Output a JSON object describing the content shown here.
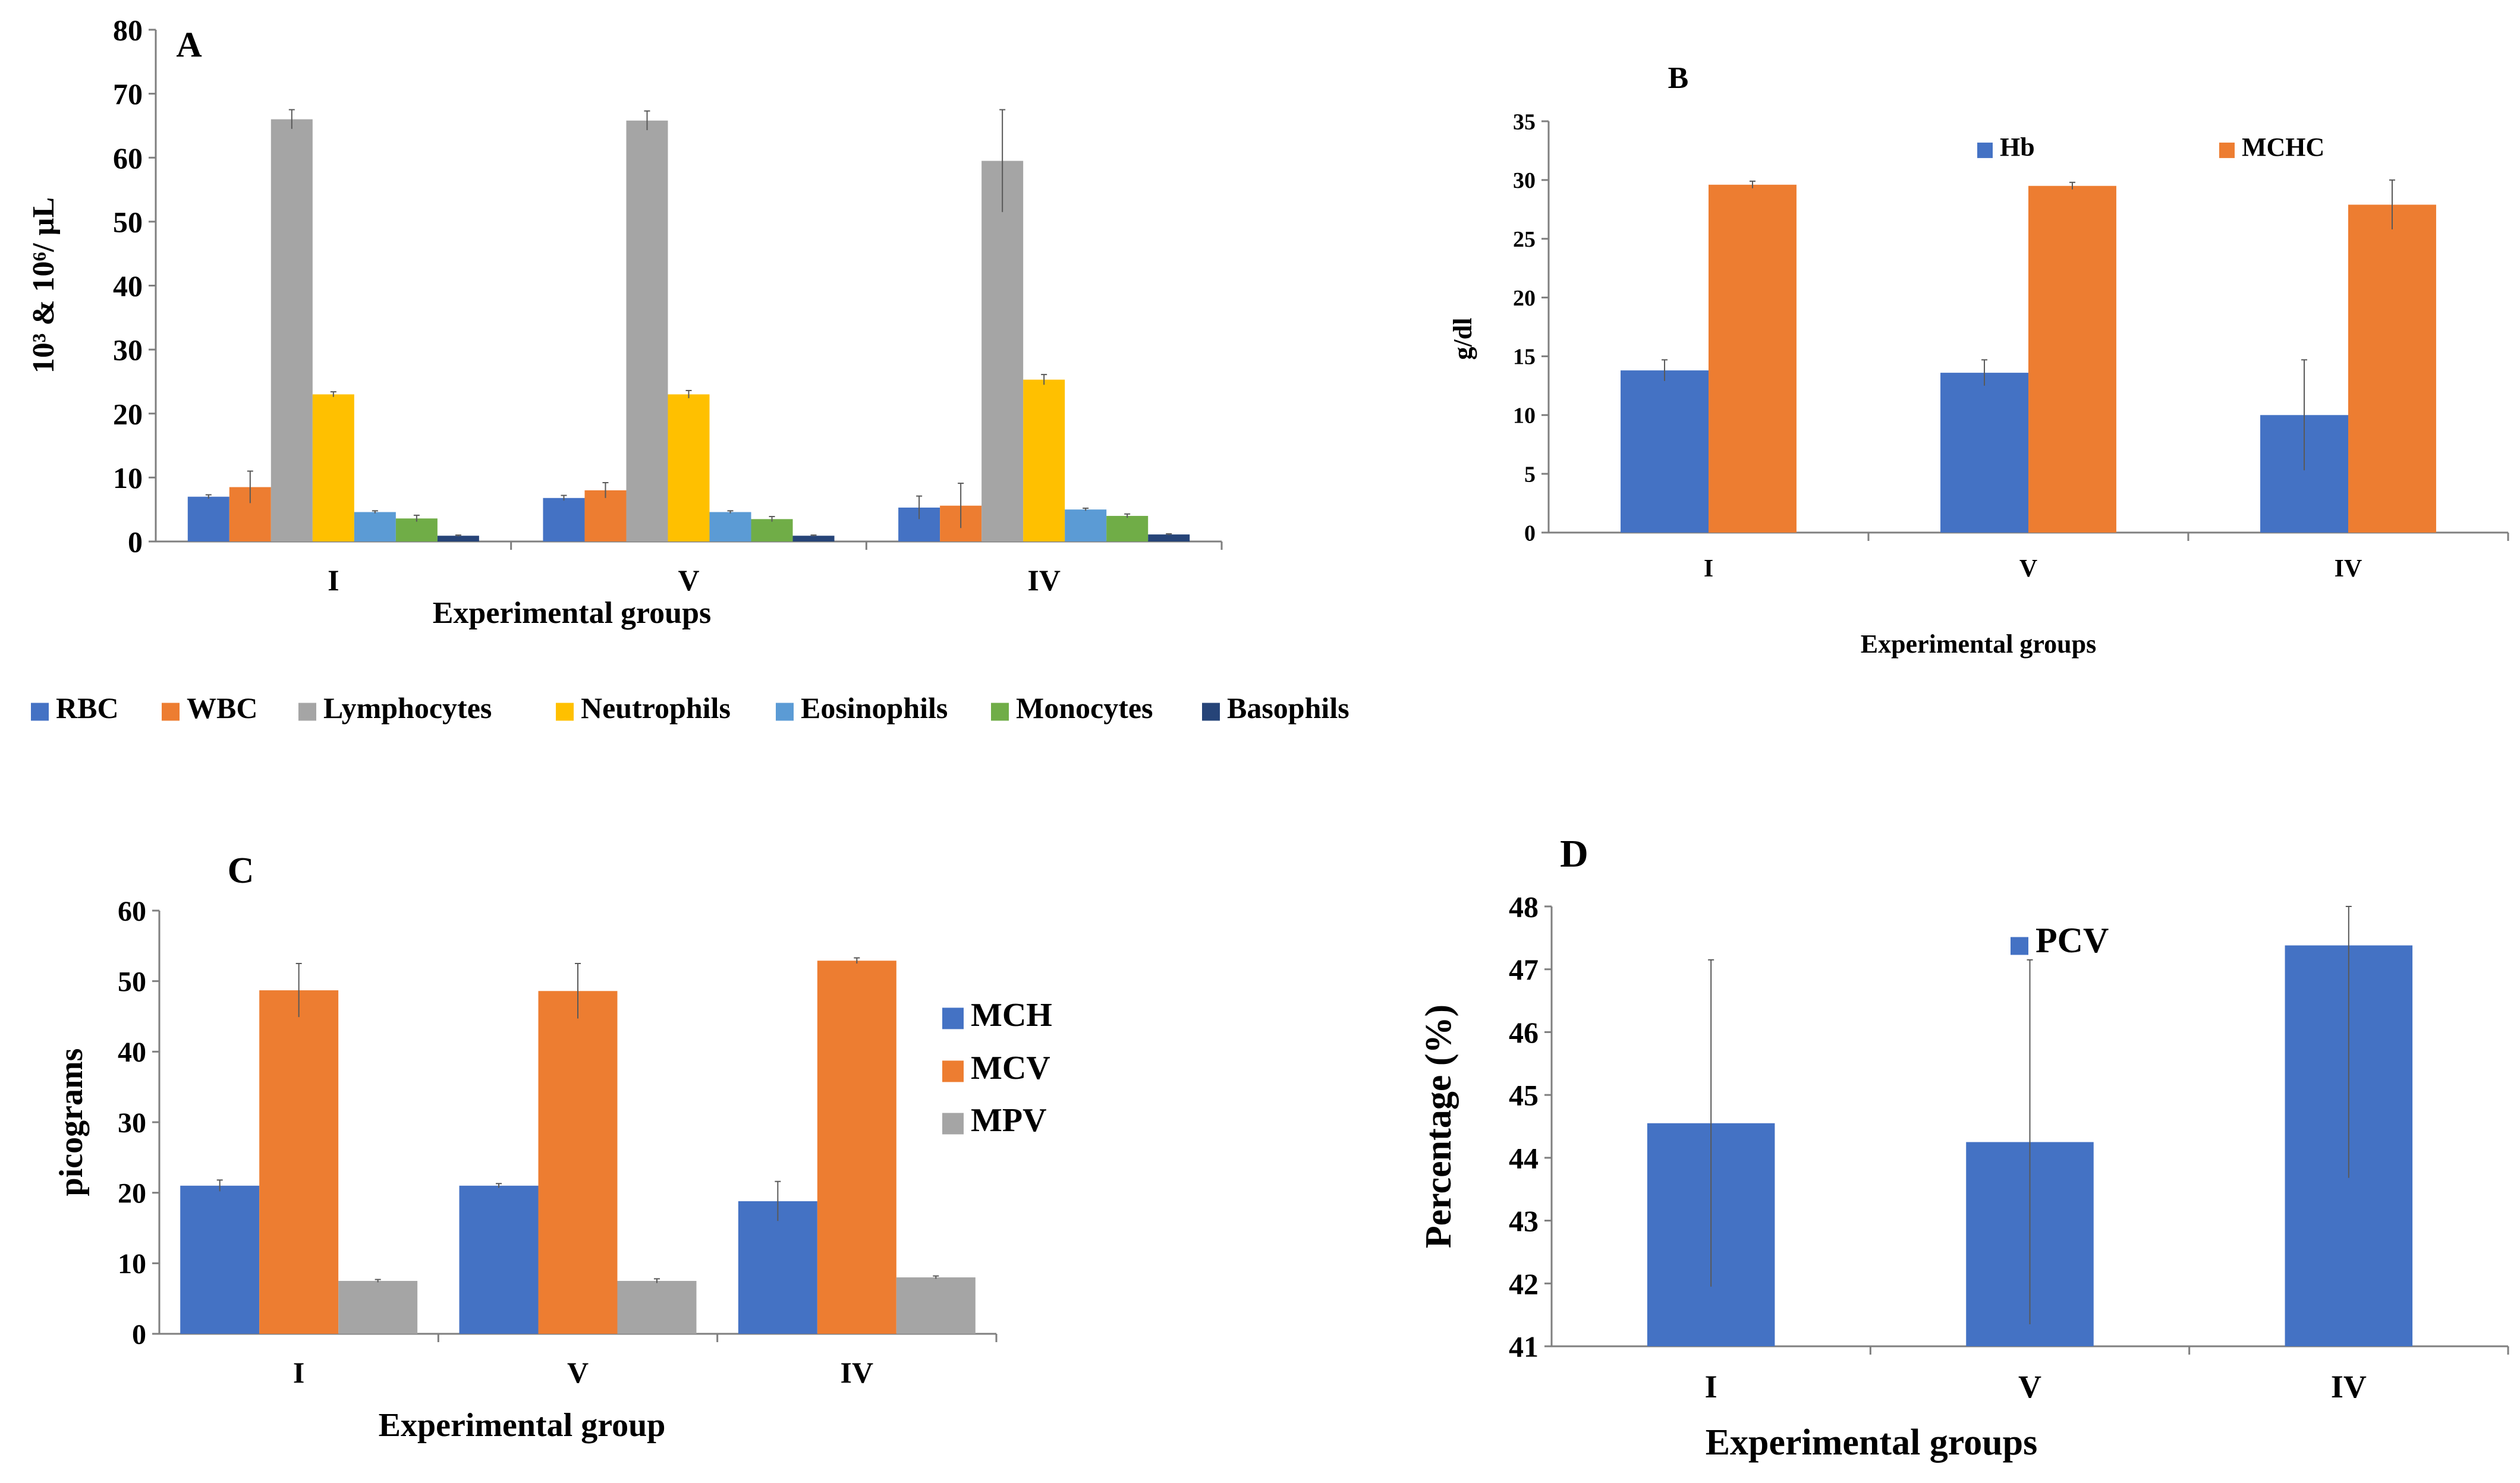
{
  "chart_data": [
    {
      "id": "A",
      "type": "bar",
      "panel_label": "A",
      "title": "",
      "xlabel": "Experimental groups",
      "ylabel": "10³ & 10⁶/ µL",
      "ylim": [
        0,
        80
      ],
      "yticks": [
        "0",
        "10",
        "20",
        "30",
        "40",
        "50",
        "60",
        "70",
        "80"
      ],
      "categories": [
        "I",
        "V",
        "IV"
      ],
      "legend_position": "bottom",
      "series": [
        {
          "name": "RBC",
          "color": "#4472C4",
          "values": [
            7.0,
            6.8,
            5.3
          ],
          "errors": [
            0.3,
            0.4,
            1.8
          ]
        },
        {
          "name": "WBC",
          "color": "#ED7D31",
          "values": [
            8.5,
            8.0,
            5.6
          ],
          "errors": [
            2.5,
            1.2,
            3.5
          ]
        },
        {
          "name": "Lymphocytes",
          "color": "#A5A5A5",
          "values": [
            66.0,
            65.8,
            59.5
          ],
          "errors": [
            1.5,
            1.5,
            8.0
          ]
        },
        {
          "name": "Neutrophils",
          "color": "#FFC000",
          "values": [
            23.0,
            23.0,
            25.3
          ],
          "errors": [
            0.4,
            0.6,
            0.8
          ]
        },
        {
          "name": "Eosinophils",
          "color": "#5B9BD5",
          "values": [
            4.6,
            4.6,
            5.0
          ],
          "errors": [
            0.2,
            0.2,
            0.2
          ]
        },
        {
          "name": "Monocytes",
          "color": "#70AD47",
          "values": [
            3.6,
            3.5,
            4.0
          ],
          "errors": [
            0.5,
            0.4,
            0.3
          ]
        },
        {
          "name": "Basophils",
          "color": "#264478",
          "values": [
            0.9,
            0.9,
            1.1
          ],
          "errors": [
            0.1,
            0.1,
            0.1
          ]
        }
      ]
    },
    {
      "id": "B",
      "type": "bar",
      "panel_label": "B",
      "title": "",
      "xlabel": "Experimental groups",
      "ylabel": "g/dl",
      "ylim": [
        0,
        35
      ],
      "yticks": [
        "0",
        "5",
        "10",
        "15",
        "20",
        "25",
        "30",
        "35"
      ],
      "categories": [
        "I",
        "V",
        "IV"
      ],
      "legend_position": "top",
      "series": [
        {
          "name": "Hb",
          "color": "#4472C4",
          "values": [
            13.8,
            13.6,
            10.0
          ],
          "errors": [
            0.9,
            1.1,
            4.7
          ]
        },
        {
          "name": "MCHC",
          "color": "#ED7D31",
          "values": [
            29.6,
            29.5,
            27.9
          ],
          "errors": [
            0.3,
            0.3,
            2.1
          ]
        }
      ]
    },
    {
      "id": "C",
      "type": "bar",
      "panel_label": "C",
      "title": "",
      "xlabel": "Experimental group",
      "ylabel": "picograms",
      "ylim": [
        0,
        60
      ],
      "yticks": [
        "0",
        "10",
        "20",
        "30",
        "40",
        "50",
        "60"
      ],
      "categories": [
        "I",
        "V",
        "IV"
      ],
      "legend_position": "right",
      "series": [
        {
          "name": "MCH",
          "color": "#4472C4",
          "values": [
            21.0,
            21.0,
            18.8
          ],
          "errors": [
            0.8,
            0.3,
            2.8
          ]
        },
        {
          "name": "MCV",
          "color": "#ED7D31",
          "values": [
            48.7,
            48.6,
            52.9
          ],
          "errors": [
            3.8,
            3.9,
            0.4
          ]
        },
        {
          "name": "MPV",
          "color": "#A5A5A5",
          "values": [
            7.5,
            7.5,
            8.0
          ],
          "errors": [
            0.2,
            0.3,
            0.2
          ]
        }
      ]
    },
    {
      "id": "D",
      "type": "bar",
      "panel_label": "D",
      "title": "",
      "xlabel": "Experimental groups",
      "ylabel": "Percentage (%)",
      "ylim": [
        41,
        48
      ],
      "yticks": [
        "41",
        "42",
        "43",
        "44",
        "45",
        "46",
        "47",
        "48"
      ],
      "categories": [
        "I",
        "V",
        "IV"
      ],
      "legend_position": "top",
      "series": [
        {
          "name": "PCV",
          "color": "#4472C4",
          "values": [
            44.55,
            44.25,
            47.38
          ],
          "errors": [
            2.6,
            2.9,
            3.7
          ]
        }
      ]
    }
  ]
}
